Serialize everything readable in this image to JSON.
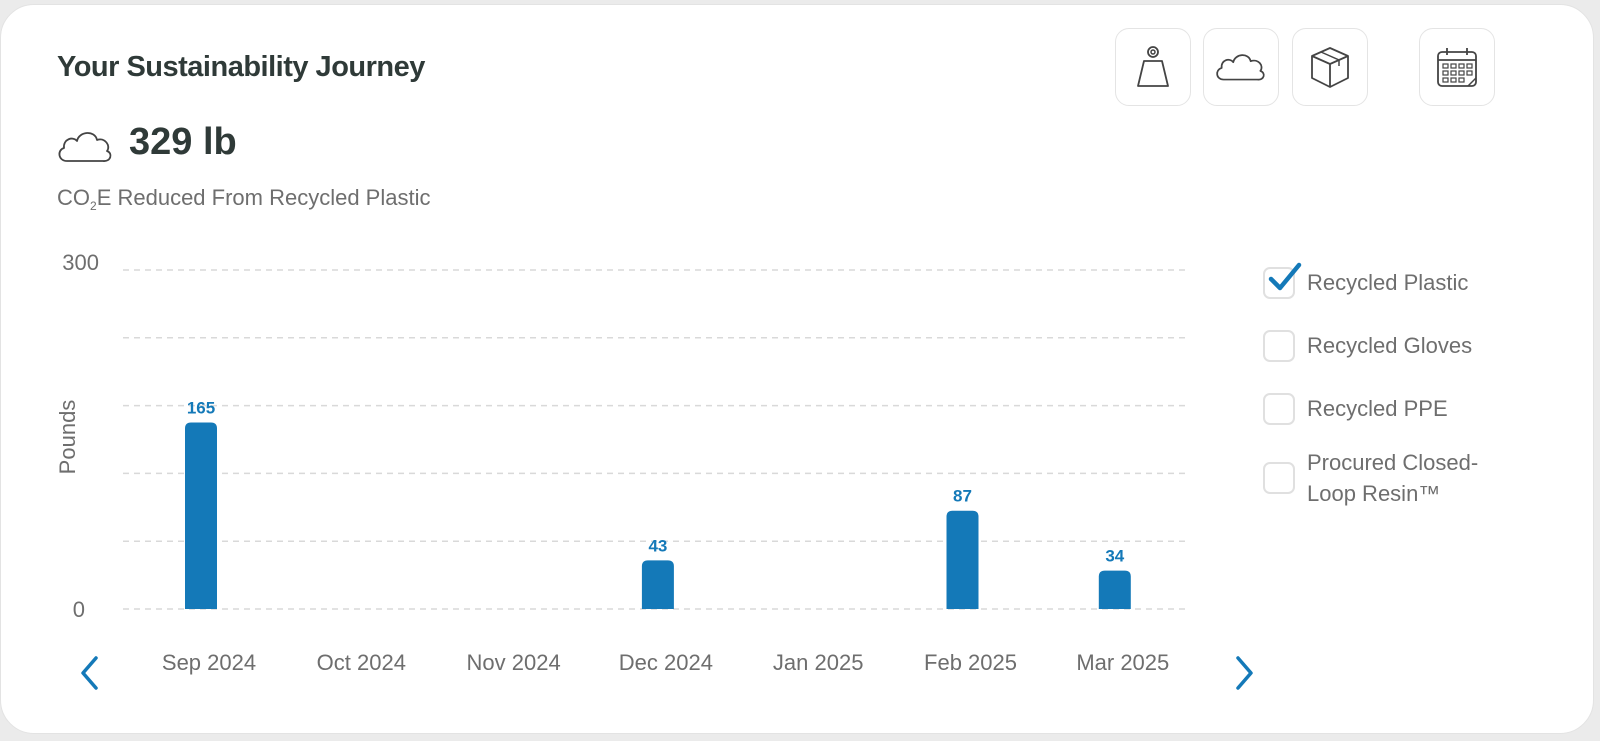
{
  "header": {
    "title": "Your Sustainability Journey"
  },
  "toolbar": {
    "buttons": [
      {
        "name": "weight",
        "icon": "weight-icon"
      },
      {
        "name": "cloud",
        "icon": "cloud-icon"
      },
      {
        "name": "box",
        "icon": "box-icon"
      },
      {
        "name": "calendar",
        "icon": "calendar-icon"
      }
    ]
  },
  "metric": {
    "icon": "cloud-icon",
    "value": "329 lb",
    "label_prefix": "CO",
    "label_sub": "2",
    "label_suffix": "E Reduced From Recycled Plastic"
  },
  "legend": {
    "items": [
      {
        "label": "Recycled Plastic",
        "checked": true
      },
      {
        "label": "Recycled Gloves",
        "checked": false
      },
      {
        "label": "Recycled PPE",
        "checked": false
      },
      {
        "label": "Procured Closed-Loop Resin™",
        "checked": false
      }
    ]
  },
  "colors": {
    "bar": "#1479b8",
    "accent": "#1479b8",
    "grid": "#d9d9d9",
    "text_muted": "#6e6e6e"
  },
  "chart_data": {
    "type": "bar",
    "title": "",
    "xlabel": "",
    "ylabel": "Pounds",
    "ylim": [
      0,
      300
    ],
    "ytick_labels": [
      "300",
      "0"
    ],
    "grid": true,
    "legend_position": "right",
    "categories": [
      "Sep 2024",
      "Oct 2024",
      "Nov 2024",
      "Dec 2024",
      "Jan 2025",
      "Feb 2025",
      "Mar 2025"
    ],
    "series": [
      {
        "name": "Recycled Plastic",
        "values": [
          165,
          0,
          0,
          43,
          0,
          87,
          34
        ]
      }
    ],
    "data_labels": [
      "165",
      "",
      "",
      "43",
      "",
      "87",
      "34"
    ]
  }
}
